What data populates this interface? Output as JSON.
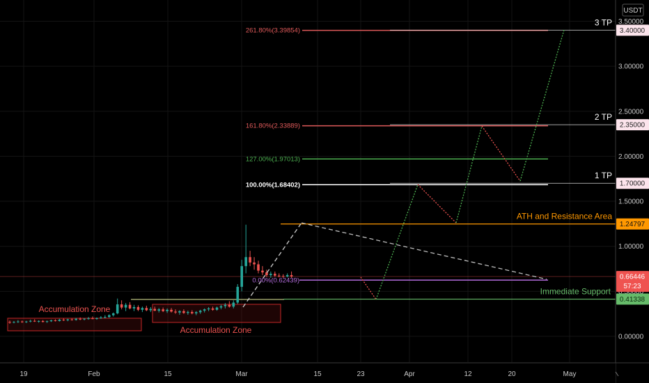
{
  "chart_data": {
    "type": "candlestick",
    "currency_label": "USDT",
    "colors": {
      "up": "#26a69a",
      "down": "#ef5350",
      "background": "#000000",
      "fib_red": "#e05a5a",
      "fib_green": "#4caf50",
      "fib_white": "#ffffff",
      "resistance": "#ff9800",
      "support": "#66bb6a",
      "purple": "#b26bdb",
      "projection_green": "#4caf50",
      "projection_red": "#ef5350"
    },
    "y_ticks": [
      "3.50000",
      "3.00000",
      "2.50000",
      "2.00000",
      "1.50000",
      "1.00000",
      "0.50000",
      "0.00000"
    ],
    "x_ticks": [
      "19",
      "Feb",
      "15",
      "Mar",
      "15",
      "23",
      "Apr",
      "12",
      "20",
      "May"
    ],
    "price_tags": [
      {
        "label": "3.40000",
        "value": 3.4,
        "style": "pink"
      },
      {
        "label": "2.35000",
        "value": 2.35,
        "style": "pink"
      },
      {
        "label": "1.70000",
        "value": 1.7,
        "style": "pink"
      },
      {
        "label": "1.24797",
        "value": 1.24797,
        "style": "orange"
      },
      {
        "label": "0.66446",
        "value": 0.66446,
        "style": "red",
        "sub": "57:23"
      },
      {
        "label": "0.41338",
        "value": 0.41338,
        "style": "green"
      }
    ],
    "fib_levels": [
      {
        "label": "261.80%(3.39854)",
        "value": 3.39854,
        "color": "fib_red"
      },
      {
        "label": "161.80%(2.33889)",
        "value": 2.33889,
        "color": "fib_red"
      },
      {
        "label": "127.00%(1.97013)",
        "value": 1.97013,
        "color": "fib_green"
      },
      {
        "label": "100.00%(1.68402)",
        "value": 1.68402,
        "color": "fib_white"
      },
      {
        "label": "0.00%(0.62439)",
        "value": 0.62439,
        "color": "purple"
      }
    ],
    "targets": [
      {
        "label": "3 TP",
        "value": 3.4
      },
      {
        "label": "2 TP",
        "value": 2.35
      },
      {
        "label": "1 TP",
        "value": 1.7
      }
    ],
    "annotations": {
      "ath": "ATH and Resistance Area",
      "support": "Immediate Support",
      "accumulation_1": "Accumulation Zone",
      "accumulation_2": "Accumulation Zone"
    },
    "candles": [
      {
        "o": 0.16,
        "h": 0.175,
        "l": 0.14,
        "c": 0.155
      },
      {
        "o": 0.155,
        "h": 0.17,
        "l": 0.145,
        "c": 0.16
      },
      {
        "o": 0.16,
        "h": 0.18,
        "l": 0.15,
        "c": 0.165
      },
      {
        "o": 0.165,
        "h": 0.175,
        "l": 0.15,
        "c": 0.158
      },
      {
        "o": 0.158,
        "h": 0.172,
        "l": 0.148,
        "c": 0.165
      },
      {
        "o": 0.165,
        "h": 0.185,
        "l": 0.155,
        "c": 0.172
      },
      {
        "o": 0.172,
        "h": 0.19,
        "l": 0.16,
        "c": 0.165
      },
      {
        "o": 0.165,
        "h": 0.178,
        "l": 0.152,
        "c": 0.17
      },
      {
        "o": 0.17,
        "h": 0.18,
        "l": 0.155,
        "c": 0.16
      },
      {
        "o": 0.16,
        "h": 0.175,
        "l": 0.15,
        "c": 0.168
      },
      {
        "o": 0.168,
        "h": 0.185,
        "l": 0.16,
        "c": 0.178
      },
      {
        "o": 0.178,
        "h": 0.19,
        "l": 0.165,
        "c": 0.17
      },
      {
        "o": 0.17,
        "h": 0.195,
        "l": 0.165,
        "c": 0.185
      },
      {
        "o": 0.185,
        "h": 0.2,
        "l": 0.17,
        "c": 0.178
      },
      {
        "o": 0.178,
        "h": 0.195,
        "l": 0.168,
        "c": 0.188
      },
      {
        "o": 0.188,
        "h": 0.2,
        "l": 0.175,
        "c": 0.182
      },
      {
        "o": 0.182,
        "h": 0.205,
        "l": 0.175,
        "c": 0.195
      },
      {
        "o": 0.195,
        "h": 0.21,
        "l": 0.18,
        "c": 0.188
      },
      {
        "o": 0.188,
        "h": 0.2,
        "l": 0.178,
        "c": 0.196
      },
      {
        "o": 0.196,
        "h": 0.215,
        "l": 0.185,
        "c": 0.2
      },
      {
        "o": 0.2,
        "h": 0.22,
        "l": 0.19,
        "c": 0.193
      },
      {
        "o": 0.193,
        "h": 0.21,
        "l": 0.185,
        "c": 0.202
      },
      {
        "o": 0.202,
        "h": 0.225,
        "l": 0.195,
        "c": 0.21
      },
      {
        "o": 0.21,
        "h": 0.235,
        "l": 0.2,
        "c": 0.215
      },
      {
        "o": 0.215,
        "h": 0.245,
        "l": 0.205,
        "c": 0.235
      },
      {
        "o": 0.235,
        "h": 0.265,
        "l": 0.22,
        "c": 0.255
      },
      {
        "o": 0.255,
        "h": 0.42,
        "l": 0.245,
        "c": 0.355
      },
      {
        "o": 0.355,
        "h": 0.4,
        "l": 0.3,
        "c": 0.32
      },
      {
        "o": 0.32,
        "h": 0.37,
        "l": 0.28,
        "c": 0.35
      },
      {
        "o": 0.35,
        "h": 0.38,
        "l": 0.3,
        "c": 0.31
      },
      {
        "o": 0.31,
        "h": 0.35,
        "l": 0.28,
        "c": 0.325
      },
      {
        "o": 0.325,
        "h": 0.345,
        "l": 0.28,
        "c": 0.295
      },
      {
        "o": 0.295,
        "h": 0.33,
        "l": 0.27,
        "c": 0.315
      },
      {
        "o": 0.315,
        "h": 0.34,
        "l": 0.28,
        "c": 0.29
      },
      {
        "o": 0.29,
        "h": 0.325,
        "l": 0.27,
        "c": 0.305
      },
      {
        "o": 0.305,
        "h": 0.33,
        "l": 0.28,
        "c": 0.285
      },
      {
        "o": 0.285,
        "h": 0.315,
        "l": 0.265,
        "c": 0.3
      },
      {
        "o": 0.3,
        "h": 0.32,
        "l": 0.27,
        "c": 0.28
      },
      {
        "o": 0.28,
        "h": 0.31,
        "l": 0.26,
        "c": 0.295
      },
      {
        "o": 0.295,
        "h": 0.315,
        "l": 0.265,
        "c": 0.275
      },
      {
        "o": 0.275,
        "h": 0.3,
        "l": 0.25,
        "c": 0.265
      },
      {
        "o": 0.265,
        "h": 0.29,
        "l": 0.24,
        "c": 0.28
      },
      {
        "o": 0.28,
        "h": 0.3,
        "l": 0.25,
        "c": 0.26
      },
      {
        "o": 0.26,
        "h": 0.285,
        "l": 0.24,
        "c": 0.27
      },
      {
        "o": 0.27,
        "h": 0.29,
        "l": 0.245,
        "c": 0.255
      },
      {
        "o": 0.255,
        "h": 0.28,
        "l": 0.235,
        "c": 0.268
      },
      {
        "o": 0.268,
        "h": 0.295,
        "l": 0.25,
        "c": 0.285
      },
      {
        "o": 0.285,
        "h": 0.31,
        "l": 0.265,
        "c": 0.3
      },
      {
        "o": 0.3,
        "h": 0.325,
        "l": 0.28,
        "c": 0.31
      },
      {
        "o": 0.31,
        "h": 0.33,
        "l": 0.285,
        "c": 0.295
      },
      {
        "o": 0.295,
        "h": 0.33,
        "l": 0.285,
        "c": 0.32
      },
      {
        "o": 0.32,
        "h": 0.35,
        "l": 0.3,
        "c": 0.335
      },
      {
        "o": 0.335,
        "h": 0.37,
        "l": 0.31,
        "c": 0.35
      },
      {
        "o": 0.35,
        "h": 0.39,
        "l": 0.32,
        "c": 0.33
      },
      {
        "o": 0.33,
        "h": 0.4,
        "l": 0.31,
        "c": 0.375
      },
      {
        "o": 0.375,
        "h": 0.58,
        "l": 0.36,
        "c": 0.55
      },
      {
        "o": 0.55,
        "h": 0.85,
        "l": 0.5,
        "c": 0.78
      },
      {
        "o": 0.78,
        "h": 1.24,
        "l": 0.7,
        "c": 0.88
      },
      {
        "o": 0.88,
        "h": 0.95,
        "l": 0.78,
        "c": 0.82
      },
      {
        "o": 0.82,
        "h": 0.88,
        "l": 0.74,
        "c": 0.8
      },
      {
        "o": 0.8,
        "h": 0.84,
        "l": 0.7,
        "c": 0.73
      },
      {
        "o": 0.73,
        "h": 0.78,
        "l": 0.68,
        "c": 0.71
      },
      {
        "o": 0.71,
        "h": 0.74,
        "l": 0.66,
        "c": 0.68
      },
      {
        "o": 0.68,
        "h": 0.72,
        "l": 0.65,
        "c": 0.695
      },
      {
        "o": 0.695,
        "h": 0.72,
        "l": 0.66,
        "c": 0.675
      },
      {
        "o": 0.675,
        "h": 0.7,
        "l": 0.655,
        "c": 0.67
      },
      {
        "o": 0.67,
        "h": 0.69,
        "l": 0.65,
        "c": 0.665
      },
      {
        "o": 0.665,
        "h": 0.7,
        "l": 0.655,
        "c": 0.68
      },
      {
        "o": 0.68,
        "h": 0.72,
        "l": 0.65,
        "c": 0.664
      }
    ]
  }
}
